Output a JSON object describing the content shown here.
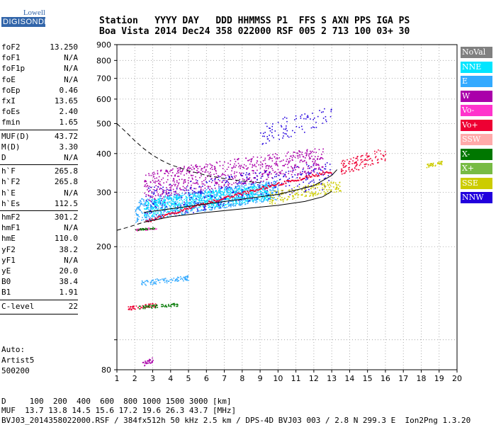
{
  "logo": {
    "line1": "Lowell",
    "line2": "DIGISONDE"
  },
  "header": {
    "row1": "Station   YYYY DAY   DDD HHMMSS P1  FFS S AXN PPS IGA PS",
    "row2": "Boa Vista 2014 Dec24 358 022000 RSF 005 2 713 100 03+ 30"
  },
  "params": [
    {
      "k": "foF2",
      "v": "13.250"
    },
    {
      "k": "foF1",
      "v": "N/A"
    },
    {
      "k": "foF1p",
      "v": "N/A"
    },
    {
      "k": "foE",
      "v": "N/A"
    },
    {
      "k": "foEp",
      "v": "0.46"
    },
    {
      "k": "fxI",
      "v": "13.65"
    },
    {
      "k": "foEs",
      "v": "2.40"
    },
    {
      "k": "fmin",
      "v": "1.65"
    },
    {
      "k": "MUF(D)",
      "v": "43.72"
    },
    {
      "k": "M(D)",
      "v": "3.30"
    },
    {
      "k": "D",
      "v": "N/A"
    },
    {
      "k": "h`F",
      "v": "265.8"
    },
    {
      "k": "h`F2",
      "v": "265.8"
    },
    {
      "k": "h`E",
      "v": "N/A"
    },
    {
      "k": "h`Es",
      "v": "112.5"
    },
    {
      "k": "hmF2",
      "v": "301.2"
    },
    {
      "k": "hmF1",
      "v": "N/A"
    },
    {
      "k": "hmE",
      "v": "110.0"
    },
    {
      "k": "yF2",
      "v": "38.2"
    },
    {
      "k": "yF1",
      "v": "N/A"
    },
    {
      "k": "yE",
      "v": "20.0"
    },
    {
      "k": "B0",
      "v": "38.4"
    },
    {
      "k": "B1",
      "v": "1.91"
    },
    {
      "k": "C-level",
      "v": "22"
    }
  ],
  "notes": {
    "auto": "Auto:",
    "artist": "Artist5",
    "code": "500200"
  },
  "footer": {
    "line1": "D     100  200  400  600  800 1000 1500 3000 [km]",
    "line2": "MUF  13.7 13.8 14.5 15.6 17.2 19.6 26.3 43.7 [MHz]",
    "line3": "BVJ03_2014358022000.RSF / 384fx512h 50 kHz 2.5 km / DPS-4D BVJ03 003 / 2.8 N 299.3 E  Ion2Png 1.3.20"
  },
  "legend": [
    {
      "label": "NoVal",
      "color": "#808080"
    },
    {
      "label": "NNE",
      "color": "#00e5ff"
    },
    {
      "label": "E",
      "color": "#33aaff"
    },
    {
      "label": "W",
      "color": "#aa00aa"
    },
    {
      "label": "Vo-",
      "color": "#ff33cc"
    },
    {
      "label": "Vo+",
      "color": "#ee0033"
    },
    {
      "label": "SSW",
      "color": "#ffaaaa"
    },
    {
      "label": "X-",
      "color": "#007700"
    },
    {
      "label": "X+",
      "color": "#77bb44"
    },
    {
      "label": "SSE",
      "color": "#cccc00"
    },
    {
      "label": "NNW",
      "color": "#2200dd"
    }
  ],
  "chart_data": {
    "type": "scatter",
    "xlim": [
      1,
      20
    ],
    "ylim": [
      80,
      900
    ],
    "ylog": true,
    "xticks": [
      "1",
      "2",
      "3",
      "4",
      "5",
      "6",
      "7",
      "8",
      "9",
      "10",
      "11",
      "12",
      "13",
      "14",
      "15",
      "16",
      "17",
      "18",
      "19",
      "20"
    ],
    "yticks": [
      {
        "v": 80,
        "label": "80"
      },
      {
        "v": 100,
        "label": ""
      },
      {
        "v": 200,
        "label": "200"
      },
      {
        "v": 300,
        "label": "300"
      },
      {
        "v": 400,
        "label": "400"
      },
      {
        "v": 500,
        "label": "500"
      },
      {
        "v": 600,
        "label": "600"
      },
      {
        "v": 700,
        "label": "700"
      },
      {
        "v": 800,
        "label": "800"
      },
      {
        "v": 900,
        "label": "900"
      }
    ],
    "traces": [
      {
        "name": "E",
        "color": "#33aaff",
        "xr": [
          2.0,
          10.0
        ],
        "yr": [
          240,
          330
        ],
        "n": 900
      },
      {
        "name": "NNE",
        "color": "#00e5ff",
        "xr": [
          2.5,
          9.5
        ],
        "yr": [
          250,
          320
        ],
        "n": 600
      },
      {
        "name": "W",
        "color": "#aa00aa",
        "xr": [
          2.5,
          12.5
        ],
        "yr": [
          280,
          420
        ],
        "n": 700
      },
      {
        "name": "NNW",
        "color": "#2200dd",
        "xr": [
          2.5,
          13.0
        ],
        "yr": [
          240,
          380
        ],
        "n": 350
      },
      {
        "name": "SSE",
        "color": "#cccc00",
        "xr": [
          9.5,
          13.5
        ],
        "yr": [
          275,
          330
        ],
        "n": 180
      },
      {
        "name": "Vo+",
        "color": "#ee0033",
        "xr": [
          13.5,
          16.0
        ],
        "yr": [
          340,
          420
        ],
        "n": 120
      },
      {
        "name": "SSE",
        "color": "#cccc00",
        "xr": [
          18.2,
          19.2
        ],
        "yr": [
          360,
          380
        ],
        "n": 40
      },
      {
        "name": "E",
        "color": "#33aaff",
        "xr": [
          2.3,
          5.0
        ],
        "yr": [
          150,
          162
        ],
        "n": 90
      },
      {
        "name": "Vo+",
        "color": "#ee0033",
        "xr": [
          1.6,
          3.2
        ],
        "yr": [
          125,
          132
        ],
        "n": 60
      },
      {
        "name": "X-",
        "color": "#007700",
        "xr": [
          2.2,
          4.5
        ],
        "yr": [
          126,
          132
        ],
        "n": 60
      },
      {
        "name": "Vo-",
        "color": "#ff33cc",
        "xr": [
          2.0,
          3.2
        ],
        "yr": [
          225,
          232
        ],
        "n": 40
      },
      {
        "name": "X-",
        "color": "#007700",
        "xr": [
          2.0,
          3.2
        ],
        "yr": [
          226,
          232
        ],
        "n": 30
      },
      {
        "name": "W",
        "color": "#aa00aa",
        "xr": [
          2.4,
          3.0
        ],
        "yr": [
          82,
          88
        ],
        "n": 30
      },
      {
        "name": "NNW",
        "color": "#2200dd",
        "xr": [
          9.0,
          13.0
        ],
        "yr": [
          420,
          580
        ],
        "n": 90
      }
    ],
    "curves": [
      {
        "name": "extrapolated",
        "dash": true,
        "x": [
          1.0,
          1.5,
          2.0,
          2.5,
          3.0,
          3.5,
          4.0,
          5.0,
          6.0,
          7.0,
          8.0,
          9.0
        ],
        "y": [
          500,
          470,
          440,
          415,
          395,
          380,
          368,
          352,
          340,
          332,
          326,
          322
        ]
      },
      {
        "name": "extrapolated-low",
        "dash": true,
        "x": [
          1.0,
          1.5,
          2.0,
          2.5
        ],
        "y": [
          226,
          230,
          235,
          240
        ]
      },
      {
        "name": "trace-fit",
        "dash": false,
        "x": [
          2.5,
          4.0,
          6.0,
          8.0,
          10.0,
          11.5,
          12.5,
          13.0
        ],
        "y": [
          240,
          250,
          258,
          265,
          272,
          280,
          290,
          302
        ]
      },
      {
        "name": "profile",
        "dash": false,
        "x": [
          2.5,
          5.0,
          8.0,
          10.0,
          12.0,
          13.0,
          13.3
        ],
        "y": [
          258,
          270,
          285,
          295,
          315,
          340,
          355
        ]
      }
    ]
  }
}
